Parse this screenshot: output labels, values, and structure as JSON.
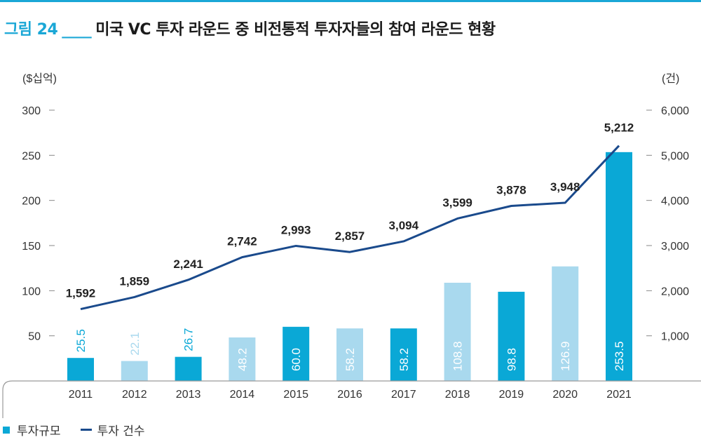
{
  "figure": {
    "number": "그림 24",
    "separator": "____",
    "title": "미국 VC 투자 라운드 중 비전통적 투자자들의 참여 라운드 현황"
  },
  "colors": {
    "accent": "#1aa7d6",
    "bar_dark": "#0aa8d6",
    "bar_light": "#a9d9ee",
    "line": "#1a4a8c"
  },
  "chart_data": {
    "type": "bar",
    "categories": [
      "2011",
      "2012",
      "2013",
      "2014",
      "2015",
      "2016",
      "2017",
      "2018",
      "2019",
      "2020",
      "2021"
    ],
    "series": [
      {
        "name": "투자규모",
        "type": "bar",
        "axis": "left",
        "values": [
          25.5,
          22.1,
          26.7,
          48.2,
          60.0,
          58.2,
          58.2,
          108.8,
          98.8,
          126.9,
          253.5
        ],
        "labels": [
          "25.5",
          "22.1",
          "26.7",
          "48.2",
          "60.0",
          "58.2",
          "58.2",
          "108.8",
          "98.8",
          "126.9",
          "253.5"
        ],
        "shade": [
          "dark",
          "light",
          "dark",
          "light",
          "dark",
          "light",
          "dark",
          "light",
          "dark",
          "light",
          "dark"
        ]
      },
      {
        "name": "투자 건수",
        "type": "line",
        "axis": "right",
        "values": [
          1592,
          1859,
          2241,
          2742,
          2993,
          2857,
          3094,
          3599,
          3878,
          3948,
          5212
        ],
        "labels": [
          "1,592",
          "1,859",
          "2,241",
          "2,742",
          "2,993",
          "2,857",
          "3,094",
          "3,599",
          "3,878",
          "3,948",
          "5,212"
        ]
      }
    ],
    "y_left": {
      "unit_label": "($십억)",
      "ylim": [
        0,
        300
      ],
      "ticks": [
        50,
        100,
        150,
        200,
        250,
        300
      ],
      "tick_labels": [
        "50",
        "100",
        "150",
        "200",
        "250",
        "300"
      ]
    },
    "y_right": {
      "unit_label": "(건)",
      "ylim": [
        0,
        6000
      ],
      "ticks": [
        1000,
        2000,
        3000,
        4000,
        5000,
        6000
      ],
      "tick_labels": [
        "1,000",
        "2,000",
        "3,000",
        "4,000",
        "5,000",
        "6,000"
      ]
    },
    "grid": false,
    "legend_position": "bottom-left"
  }
}
